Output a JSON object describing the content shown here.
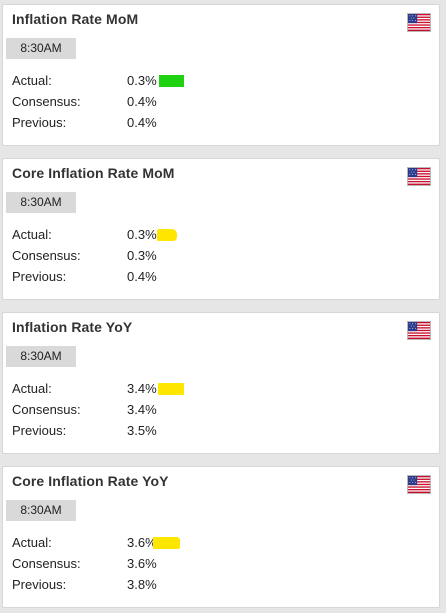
{
  "colors": {
    "marker_green": "#1ed20f",
    "marker_yellow": "#ffe600"
  },
  "cards": [
    {
      "title": "Inflation Rate MoM",
      "country_icon": "us-flag-icon",
      "time": "8:30AM",
      "actual_label": "Actual:",
      "actual_value": "0.3%",
      "actual_marker_color": "#1ed20f",
      "consensus_label": "Consensus:",
      "consensus_value": "0.4%",
      "previous_label": "Previous:",
      "previous_value": "0.4%"
    },
    {
      "title": "Core Inflation Rate MoM",
      "country_icon": "us-flag-icon",
      "time": "8:30AM",
      "actual_label": "Actual:",
      "actual_value": "0.3%",
      "actual_marker_color": "#ffe600",
      "consensus_label": "Consensus:",
      "consensus_value": "0.3%",
      "previous_label": "Previous:",
      "previous_value": "0.4%"
    },
    {
      "title": "Inflation Rate YoY",
      "country_icon": "us-flag-icon",
      "time": "8:30AM",
      "actual_label": "Actual:",
      "actual_value": "3.4%",
      "actual_marker_color": "#ffe600",
      "consensus_label": "Consensus:",
      "consensus_value": "3.4%",
      "previous_label": "Previous:",
      "previous_value": "3.5%"
    },
    {
      "title": "Core Inflation Rate YoY",
      "country_icon": "us-flag-icon",
      "time": "8:30AM",
      "actual_label": "Actual:",
      "actual_value": "3.6%",
      "actual_marker_color": "#ffe600",
      "consensus_label": "Consensus:",
      "consensus_value": "3.6%",
      "previous_label": "Previous:",
      "previous_value": "3.8%"
    }
  ]
}
